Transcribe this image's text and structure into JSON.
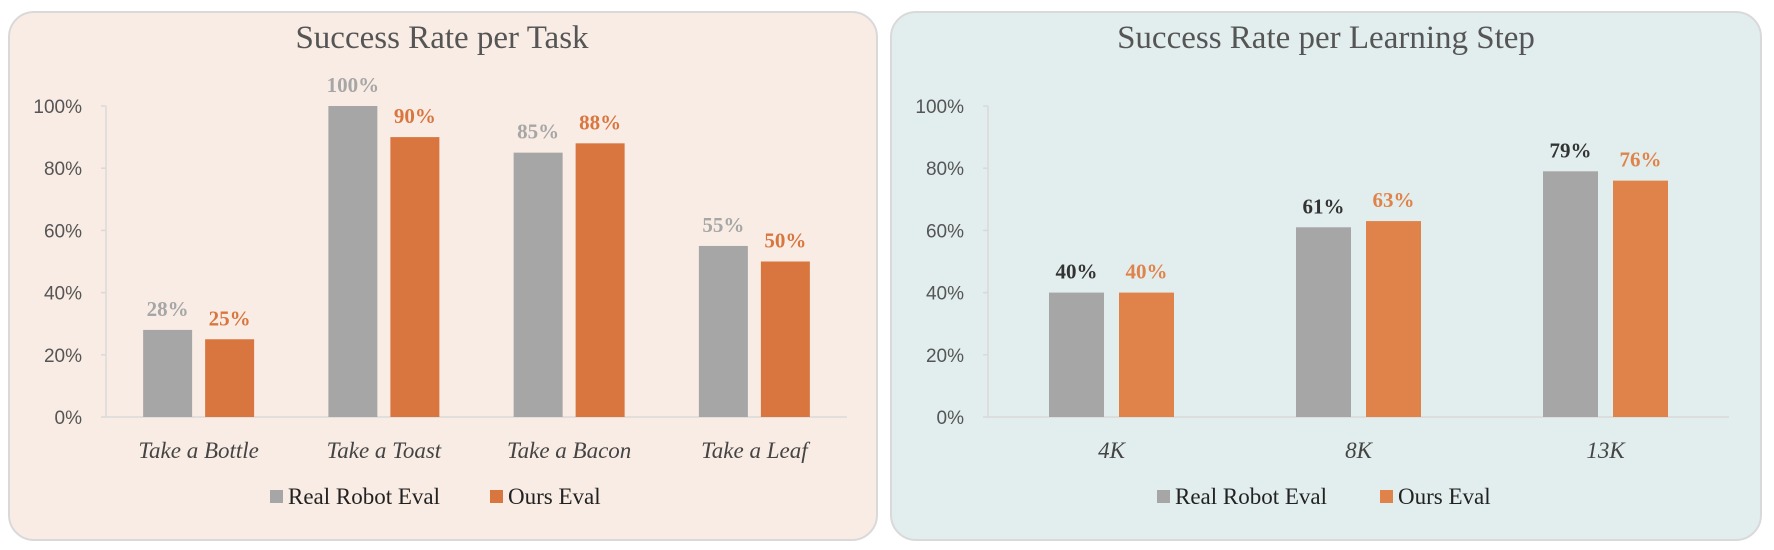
{
  "chart_data": [
    {
      "type": "bar",
      "title": "Success Rate per Task",
      "background": "#f9ece4",
      "categories": [
        "Take a Bottle",
        "Take a Toast",
        "Take a Bacon",
        "Take a Leaf"
      ],
      "series": [
        {
          "name": "Real Robot Eval",
          "values": [
            28,
            100,
            85,
            55
          ],
          "color": "#a6a6a6",
          "label_color": "#a6a6a6"
        },
        {
          "name": "Ours Eval",
          "values": [
            25,
            90,
            88,
            50
          ],
          "color": "#d9763f",
          "label_color": "#d9763f"
        }
      ],
      "data_labels": [
        [
          "28%",
          "100%",
          "85%",
          "55%"
        ],
        [
          "25%",
          "90%",
          "88%",
          "50%"
        ]
      ],
      "yticks": [
        "0%",
        "20%",
        "40%",
        "60%",
        "80%",
        "100%"
      ],
      "ylim": [
        0,
        100
      ],
      "grid": false,
      "legend": "bottom"
    },
    {
      "type": "bar",
      "title": "Success Rate per Learning Step",
      "background": "#e2eded",
      "categories": [
        "4K",
        "8K",
        "13K"
      ],
      "series": [
        {
          "name": "Real Robot Eval",
          "values": [
            40,
            61,
            79
          ],
          "color": "#a6a6a6",
          "label_color": "#333333"
        },
        {
          "name": "Ours Eval",
          "values": [
            40,
            63,
            76
          ],
          "color": "#e0834a",
          "label_color": "#e0834a"
        }
      ],
      "data_labels": [
        [
          "40%",
          "61%",
          "79%"
        ],
        [
          "40%",
          "63%",
          "76%"
        ]
      ],
      "yticks": [
        "0%",
        "20%",
        "40%",
        "60%",
        "80%",
        "100%"
      ],
      "ylim": [
        0,
        100
      ],
      "grid": false,
      "legend": "bottom"
    }
  ]
}
